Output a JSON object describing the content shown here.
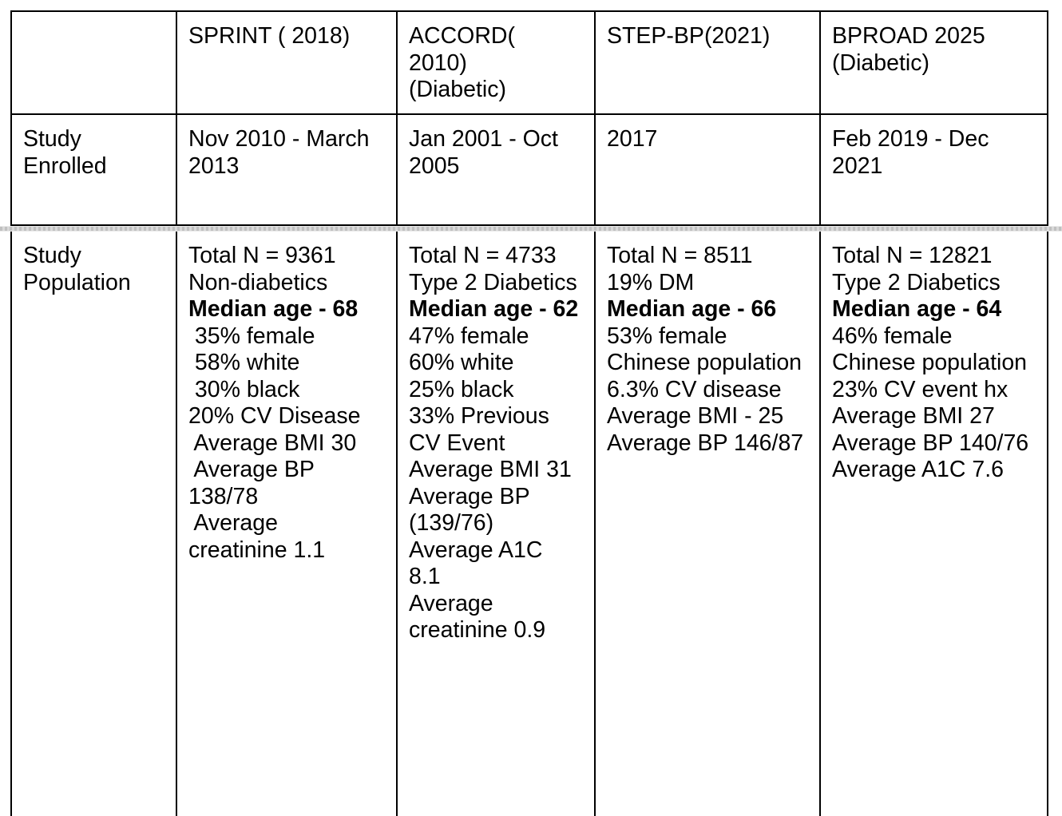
{
  "colors": {
    "table_border": "#000000",
    "text": "#000000",
    "page_break_band": "#d9d9d9",
    "page_break_dash": "#c0c0c0"
  },
  "table": {
    "rows": [
      {
        "name": "header",
        "cells": [
          {
            "lines": []
          },
          {
            "lines": [
              {
                "t": "SPRINT ( 2018)",
                "b": false
              }
            ]
          },
          {
            "lines": [
              {
                "t": "ACCORD(",
                "b": false
              },
              {
                "t": "2010)",
                "b": false
              },
              {
                "t": "(Diabetic)",
                "b": false
              }
            ]
          },
          {
            "lines": [
              {
                "t": "STEP-BP(2021)",
                "b": false
              }
            ]
          },
          {
            "lines": [
              {
                "t": "BPROAD 2025",
                "b": false
              },
              {
                "t": "(Diabetic)",
                "b": false
              }
            ]
          }
        ]
      },
      {
        "name": "study-enrolled",
        "cells": [
          {
            "lines": [
              {
                "t": "Study",
                "b": false
              },
              {
                "t": "Enrolled",
                "b": false
              }
            ]
          },
          {
            "lines": [
              {
                "t": "Nov 2010 - March",
                "b": false
              },
              {
                "t": "2013",
                "b": false
              }
            ]
          },
          {
            "lines": [
              {
                "t": "Jan 2001 - Oct",
                "b": false
              },
              {
                "t": "2005",
                "b": false
              }
            ]
          },
          {
            "lines": [
              {
                "t": "2017",
                "b": false
              }
            ]
          },
          {
            "lines": [
              {
                "t": "Feb 2019 - Dec",
                "b": false
              },
              {
                "t": "2021",
                "b": false
              }
            ]
          }
        ]
      },
      {
        "name": "study-population",
        "cells": [
          {
            "lines": [
              {
                "t": "Study",
                "b": false
              },
              {
                "t": "Population",
                "b": false
              }
            ]
          },
          {
            "lines": [
              {
                "t": "Total N = 9361",
                "b": false
              },
              {
                "t": "Non-diabetics",
                "b": false
              },
              {
                "t": "Median age - 68",
                "b": true
              },
              {
                "t": " 35% female",
                "b": false
              },
              {
                "t": " 58% white",
                "b": false
              },
              {
                "t": " 30% black",
                "b": false
              },
              {
                "t": "20% CV Disease",
                "b": false
              },
              {
                "t": " Average BMI 30",
                "b": false
              },
              {
                "t": " Average BP",
                "b": false
              },
              {
                "t": "138/78",
                "b": false
              },
              {
                "t": " Average",
                "b": false
              },
              {
                "t": "creatinine 1.1",
                "b": false
              }
            ]
          },
          {
            "lines": [
              {
                "t": "Total N = 4733",
                "b": false
              },
              {
                "t": "Type 2 Diabetics",
                "b": false
              },
              {
                "t": "Median age - 62",
                "b": true
              },
              {
                "t": "47% female",
                "b": false
              },
              {
                "t": "60% white",
                "b": false
              },
              {
                "t": "25% black",
                "b": false
              },
              {
                "t": "33% Previous",
                "b": false
              },
              {
                "t": "CV Event",
                "b": false
              },
              {
                "t": "Average BMI 31",
                "b": false
              },
              {
                "t": "Average BP",
                "b": false
              },
              {
                "t": "(139/76)",
                "b": false
              },
              {
                "t": "Average A1C",
                "b": false
              },
              {
                "t": "8.1",
                "b": false
              },
              {
                "t": "Average",
                "b": false
              },
              {
                "t": "creatinine 0.9",
                "b": false
              }
            ]
          },
          {
            "lines": [
              {
                "t": "Total N = 8511",
                "b": false
              },
              {
                "t": "19% DM",
                "b": false
              },
              {
                "t": "Median age - 66",
                "b": true
              },
              {
                "t": "53% female",
                "b": false
              },
              {
                "t": "Chinese population",
                "b": false
              },
              {
                "t": "6.3% CV disease",
                "b": false
              },
              {
                "t": "Average BMI - 25",
                "b": false
              },
              {
                "t": "Average BP 146/87",
                "b": false
              }
            ]
          },
          {
            "lines": [
              {
                "t": "Total N = 12821",
                "b": false
              },
              {
                "t": "Type 2 Diabetics",
                "b": false
              },
              {
                "t": "Median age - 64",
                "b": true
              },
              {
                "t": "46% female",
                "b": false
              },
              {
                "t": "Chinese population",
                "b": false
              },
              {
                "t": "23% CV event hx",
                "b": false
              },
              {
                "t": "Average BMI 27",
                "b": false
              },
              {
                "t": "Average BP 140/76",
                "b": false
              },
              {
                "t": "Average A1C 7.6",
                "b": false
              }
            ]
          }
        ]
      }
    ]
  }
}
